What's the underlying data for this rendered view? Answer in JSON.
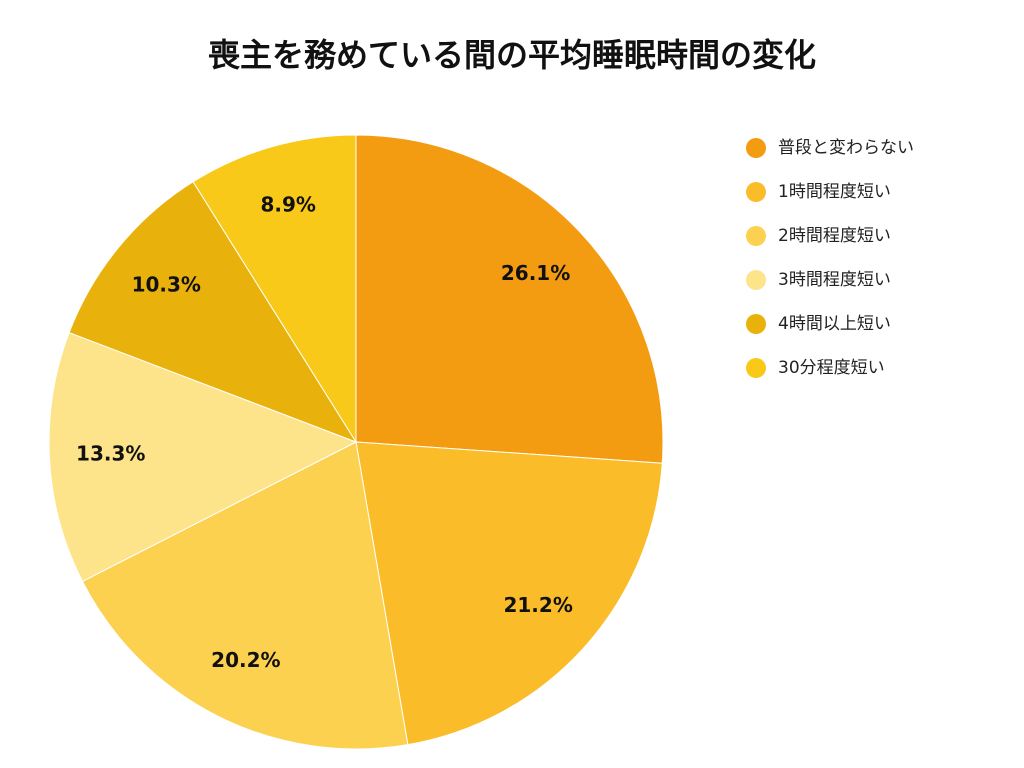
{
  "chart_data": {
    "type": "pie",
    "title": "喪主を務めている間の平均睡眠時間の変化",
    "categories": [
      "普段と変わらない",
      "1時間程度短い",
      "2時間程度短い",
      "3時間程度短い",
      "4時間以上短い",
      "30分程度短い"
    ],
    "values": [
      26.1,
      21.2,
      20.2,
      13.3,
      10.3,
      8.9
    ],
    "value_labels": [
      "26.1%",
      "21.2%",
      "20.2%",
      "13.3%",
      "10.3%",
      "8.9%"
    ],
    "colors": [
      "#f39c12",
      "#fbbc29",
      "#fcd150",
      "#fde48a",
      "#e8b10c",
      "#f8c918"
    ],
    "legend": "right"
  }
}
